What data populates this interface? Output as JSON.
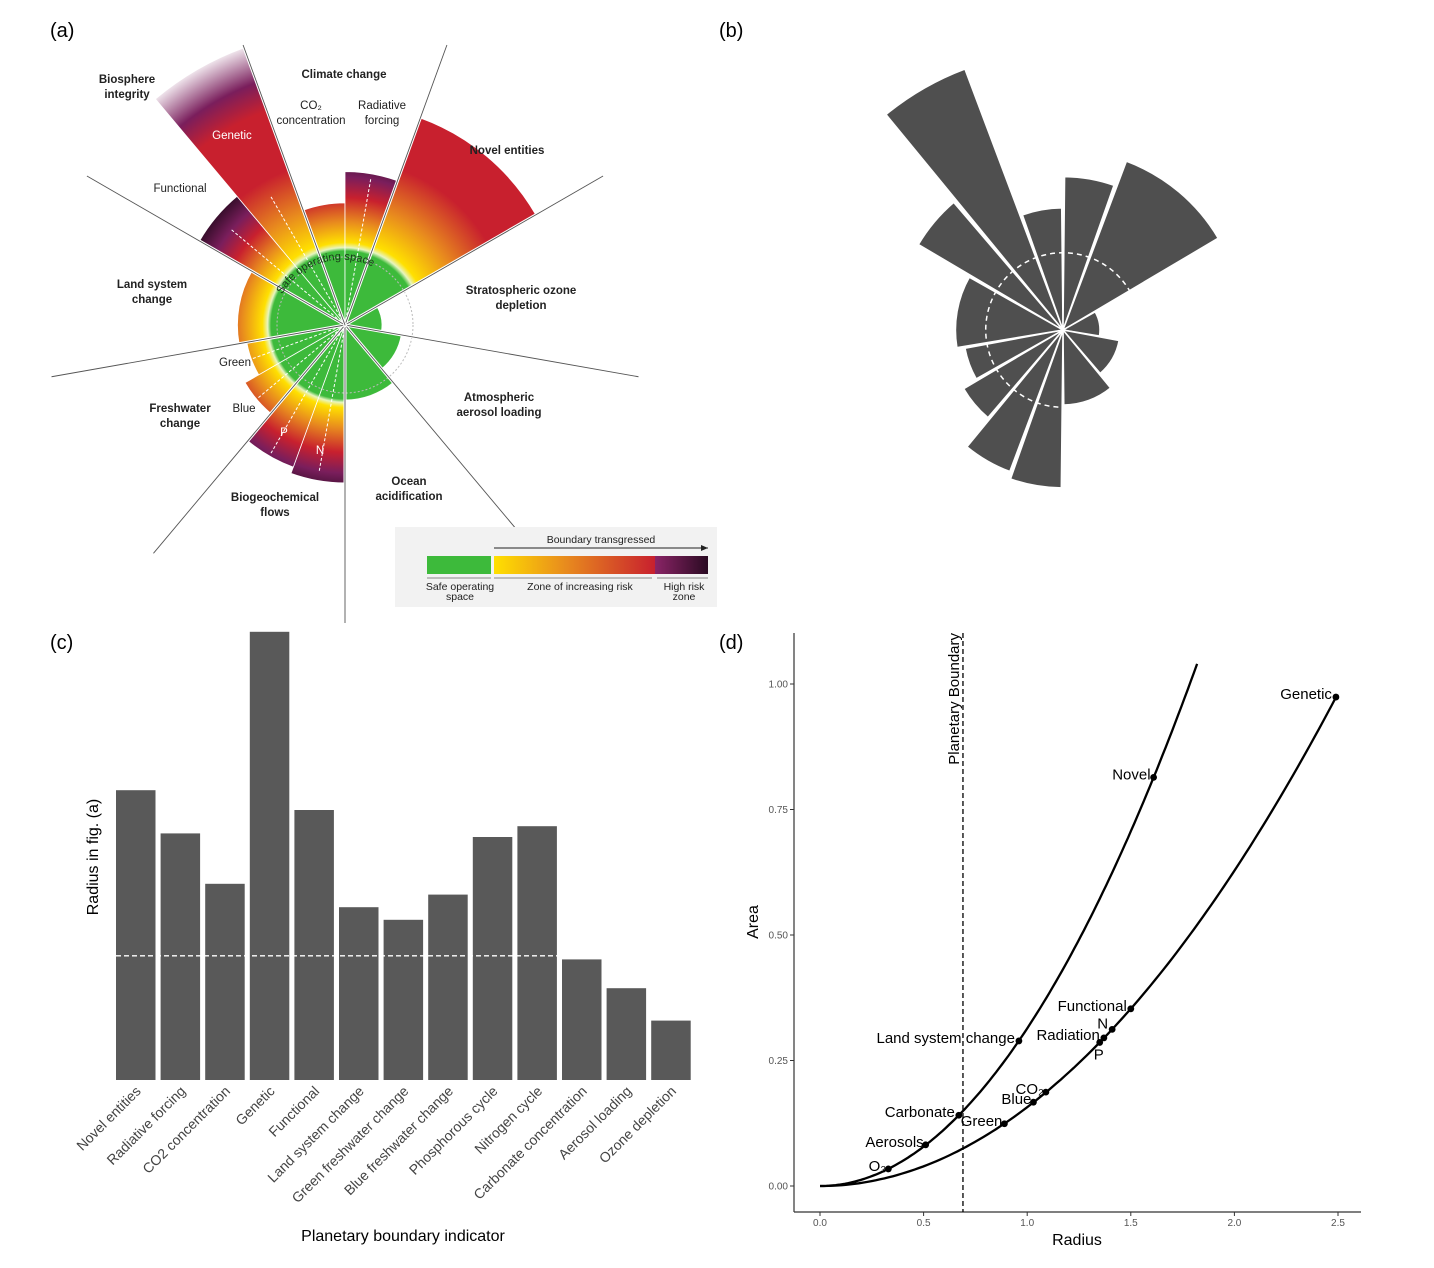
{
  "panel_labels": {
    "a": "(a)",
    "b": "(b)",
    "c": "(c)",
    "d": "(d)"
  },
  "colors": {
    "safe": "#3dba3b",
    "yellow": "#ffe000",
    "orange": "#e88a1e",
    "red": "#c8202e",
    "purple": "#7a1e5c",
    "dark": "#2a0a22",
    "bar": "#595959"
  },
  "panel_a": {
    "sectors": {
      "biosphere": [
        "Biosphere",
        "integrity"
      ],
      "climate": "Climate change",
      "co2": [
        "CO₂",
        "concentration"
      ],
      "radiative": [
        "Radiative",
        "forcing"
      ],
      "novel": "Novel entities",
      "functional": "Functional",
      "genetic": "Genetic",
      "land": [
        "Land system",
        "change"
      ],
      "ozone": [
        "Stratospheric ozone",
        "depletion"
      ],
      "green": "Green",
      "blue": "Blue",
      "freshwater": [
        "Freshwater",
        "change"
      ],
      "p": "P",
      "n": "N",
      "aerosol": [
        "Atmospheric",
        "aerosol loading"
      ],
      "ocean": [
        "Ocean",
        "acidification"
      ],
      "biogeo": [
        "Biogeochemical",
        "flows"
      ]
    },
    "safe_space_label": "Safe operating space",
    "legend": {
      "arrow_label": "Boundary transgressed",
      "safe": [
        "Safe operating",
        "space"
      ],
      "zone": "Zone of increasing risk",
      "high": [
        "High risk",
        "zone"
      ]
    }
  },
  "chart_data": [
    {
      "panel": "b",
      "type": "polar-area",
      "boundary_radius": 0.69,
      "wedges": [
        {
          "name": "CO2 concentration",
          "radius": 1.09
        },
        {
          "name": "Radiative forcing",
          "radius": 1.37
        },
        {
          "name": "Novel entities",
          "radius": 1.61
        },
        {
          "name": "Ozone depletion",
          "radius": 0.33
        },
        {
          "name": "Aerosol loading",
          "radius": 0.51
        },
        {
          "name": "Carbonate concentration",
          "radius": 0.67
        },
        {
          "name": "Nitrogen cycle",
          "radius": 1.41
        },
        {
          "name": "Phosphorous cycle",
          "radius": 1.35
        },
        {
          "name": "Blue freshwater change",
          "radius": 1.03
        },
        {
          "name": "Green freshwater change",
          "radius": 0.89
        },
        {
          "name": "Land system change",
          "radius": 0.96
        },
        {
          "name": "Functional",
          "radius": 1.5
        },
        {
          "name": "Genetic",
          "radius": 2.49
        }
      ]
    },
    {
      "panel": "c",
      "type": "bar",
      "xlabel": "Planetary boundary indicator",
      "ylabel": "Radius in fig. (a)",
      "categories": [
        "Novel entities",
        "Radiative forcing",
        "CO2 concentration",
        "Genetic",
        "Functional",
        "Land system change",
        "Green freshwater change",
        "Blue freshwater change",
        "Phosphorous cycle",
        "Nitrogen cycle",
        "Carbonate concentration",
        "Aerosol loading",
        "Ozone depletion"
      ],
      "values": [
        1.61,
        1.37,
        1.09,
        2.49,
        1.5,
        0.96,
        0.89,
        1.03,
        1.35,
        1.41,
        0.67,
        0.51,
        0.33
      ],
      "reference_line": 0.69,
      "ylim": [
        0,
        2.49
      ],
      "grid": false
    },
    {
      "panel": "d",
      "type": "line",
      "xlabel": "Radius",
      "ylabel": "Area",
      "xlim": [
        -0.06,
        2.65
      ],
      "ylim": [
        -0.05,
        1.1
      ],
      "xticks": [
        "0.0",
        "0.5",
        "1.0",
        "1.5",
        "2.0",
        "2.5"
      ],
      "yticks": [
        "0.00",
        "0.25",
        "0.50",
        "0.75",
        "1.00"
      ],
      "vline": {
        "x": 0.69,
        "label": "Planetary Boundary"
      },
      "series": [
        {
          "curve_xmax": 1.82,
          "coef": 0.314,
          "points": [
            {
              "label": "O₃",
              "x": 0.33,
              "y": 0.034
            },
            {
              "label": "Aerosols",
              "x": 0.51,
              "y": 0.082
            },
            {
              "label": "Carbonate",
              "x": 0.67,
              "y": 0.141
            },
            {
              "label": "Land system change",
              "x": 0.96,
              "y": 0.289
            },
            {
              "label": "Novel",
              "x": 1.61,
              "y": 0.814
            }
          ]
        },
        {
          "curve_xmax": 2.49,
          "coef": 0.157,
          "points": [
            {
              "label": "Green",
              "x": 0.89,
              "y": 0.124
            },
            {
              "label": "Blue",
              "x": 1.03,
              "y": 0.167
            },
            {
              "label": "CO₂",
              "x": 1.09,
              "y": 0.187
            },
            {
              "label": "P",
              "x": 1.35,
              "y": 0.286
            },
            {
              "label": "Radiation",
              "x": 1.37,
              "y": 0.295
            },
            {
              "label": "N",
              "x": 1.41,
              "y": 0.312
            },
            {
              "label": "Functional",
              "x": 1.5,
              "y": 0.353
            },
            {
              "label": "Genetic",
              "x": 2.49,
              "y": 0.974
            }
          ]
        }
      ]
    }
  ]
}
